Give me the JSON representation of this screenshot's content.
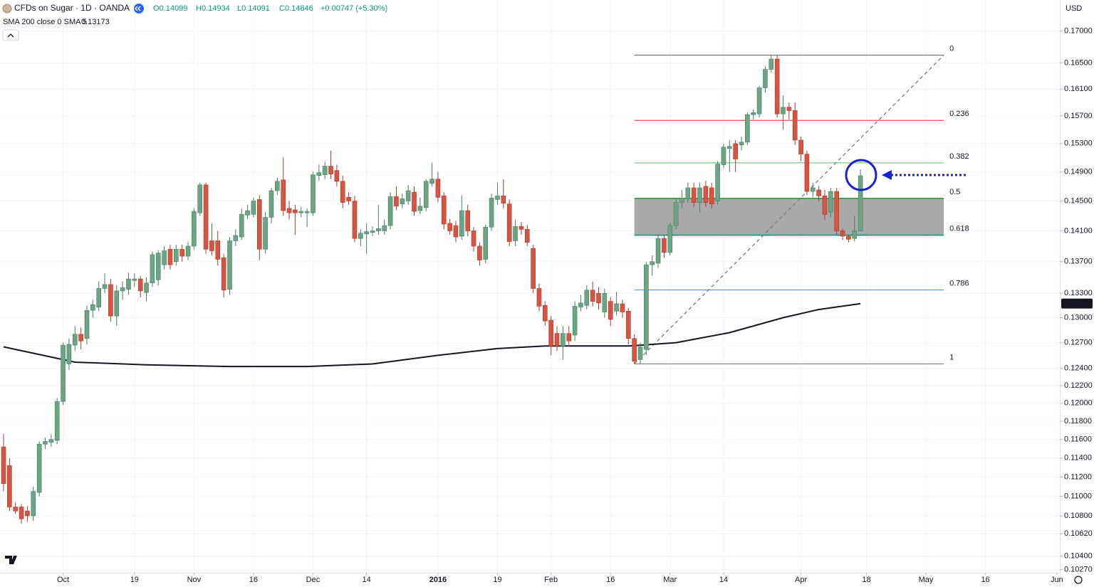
{
  "chart_data": {
    "type": "candlestick",
    "title": "CFDs on Sugar · 1D · OANDA",
    "ohlc_text": [
      "O0.14099",
      "H0.14934",
      "L0.14091",
      "C0.14846",
      "+0.00747 (+5.30%)"
    ],
    "currency": "USD",
    "log_scale": true,
    "grid": true,
    "up_color": "#6ba583",
    "down_color": "#d75442",
    "xlim": [
      -0.6,
      177.5
    ],
    "ylim": [
      0.1024,
      0.175
    ],
    "xticks": [
      {
        "value": 10,
        "label": "Oct"
      },
      {
        "value": 22,
        "label": "19"
      },
      {
        "value": 32,
        "label": "Nov"
      },
      {
        "value": 42,
        "label": "16"
      },
      {
        "value": 52,
        "label": "Dec"
      },
      {
        "value": 61,
        "label": "14"
      },
      {
        "value": 73,
        "label": "2016"
      },
      {
        "value": 83,
        "label": "19"
      },
      {
        "value": 92,
        "label": "Feb"
      },
      {
        "value": 102,
        "label": "16"
      },
      {
        "value": 112,
        "label": "Mar"
      },
      {
        "value": 121,
        "label": "14"
      },
      {
        "value": 134,
        "label": "Apr"
      },
      {
        "value": 145,
        "label": "18"
      },
      {
        "value": 155,
        "label": "May"
      },
      {
        "value": 165,
        "label": "16"
      },
      {
        "value": 177,
        "label": "Jun"
      }
    ],
    "yticks": [
      {
        "value": 0.17,
        "label": "0.17000"
      },
      {
        "value": 0.165,
        "label": "0.16500"
      },
      {
        "value": 0.161,
        "label": "0.16100"
      },
      {
        "value": 0.157,
        "label": "0.15700"
      },
      {
        "value": 0.153,
        "label": "0.15300"
      },
      {
        "value": 0.149,
        "label": "0.14900"
      },
      {
        "value": 0.145,
        "label": "0.14500"
      },
      {
        "value": 0.141,
        "label": "0.14100"
      },
      {
        "value": 0.137,
        "label": "0.13700"
      },
      {
        "value": 0.133,
        "label": "0.13300"
      },
      {
        "value": 0.13,
        "label": "0.13000"
      },
      {
        "value": 0.127,
        "label": "0.12700"
      },
      {
        "value": 0.124,
        "label": "0.12400"
      },
      {
        "value": 0.122,
        "label": "0.12200"
      },
      {
        "value": 0.12,
        "label": "0.12000"
      },
      {
        "value": 0.118,
        "label": "0.11800"
      },
      {
        "value": 0.116,
        "label": "0.11600"
      },
      {
        "value": 0.114,
        "label": "0.11400"
      },
      {
        "value": 0.112,
        "label": "0.11200"
      },
      {
        "value": 0.11,
        "label": "0.11000"
      },
      {
        "value": 0.108,
        "label": "0.10800"
      },
      {
        "value": 0.1062,
        "label": "0.10620"
      },
      {
        "value": 0.104,
        "label": "0.10400"
      },
      {
        "value": 0.1027,
        "label": "0.10270"
      }
    ],
    "x": [
      0,
      1,
      2,
      3,
      4,
      5,
      6,
      7,
      8,
      9,
      10,
      11,
      12,
      13,
      14,
      15,
      16,
      17,
      18,
      19,
      20,
      21,
      22,
      23,
      24,
      25,
      26,
      27,
      28,
      29,
      30,
      31,
      32,
      33,
      34,
      35,
      36,
      37,
      38,
      39,
      40,
      41,
      42,
      43,
      44,
      45,
      46,
      47,
      48,
      49,
      50,
      51,
      52,
      53,
      54,
      55,
      56,
      57,
      58,
      59,
      60,
      61,
      62,
      63,
      64,
      65,
      66,
      67,
      68,
      69,
      70,
      71,
      72,
      73,
      74,
      75,
      76,
      77,
      78,
      79,
      80,
      81,
      82,
      83,
      84,
      85,
      86,
      87,
      88,
      89,
      90,
      91,
      92,
      93,
      94,
      95,
      96,
      97,
      98,
      99,
      100,
      101,
      102,
      103,
      104,
      105,
      106,
      107,
      108,
      109,
      110,
      111,
      112,
      113,
      114,
      115,
      116,
      117,
      118,
      119,
      120,
      121,
      122,
      123,
      124,
      125,
      126,
      127,
      128,
      129,
      130,
      131,
      132,
      133,
      134,
      135,
      136,
      137,
      138,
      139,
      140,
      141,
      142,
      143,
      144
    ],
    "open": [
      0.1152,
      0.1132,
      0.1089,
      0.1089,
      0.1085,
      0.108,
      0.1104,
      0.1155,
      0.1157,
      0.1159,
      0.1202,
      0.1245,
      0.1267,
      0.128,
      0.1275,
      0.1309,
      0.1313,
      0.1336,
      0.1341,
      0.1302,
      0.1333,
      0.1335,
      0.1346,
      0.1348,
      0.1331,
      0.1343,
      0.1347,
      0.1366,
      0.1386,
      0.137,
      0.1386,
      0.1377,
      0.139,
      0.1434,
      0.1472,
      0.1397,
      0.1397,
      0.1375,
      0.1335,
      0.1397,
      0.1402,
      0.1431,
      0.1432,
      0.1452,
      0.1386,
      0.1428,
      0.1464,
      0.1479,
      0.144,
      0.1438,
      0.1434,
      0.1434,
      0.1434,
      0.1485,
      0.1486,
      0.1498,
      0.1492,
      0.1477,
      0.1455,
      0.145,
      0.14,
      0.1406,
      0.1408,
      0.141,
      0.141,
      0.1417,
      0.1456,
      0.1446,
      0.145,
      0.1462,
      0.1437,
      0.1441,
      0.1474,
      0.148,
      0.1457,
      0.142,
      0.1417,
      0.1403,
      0.1437,
      0.141,
      0.139,
      0.1373,
      0.1415,
      0.1452,
      0.1457,
      0.1446,
      0.1397,
      0.1416,
      0.1412,
      0.1387,
      0.1336,
      0.1315,
      0.1297,
      0.1281,
      0.1266,
      0.1281,
      0.1279,
      0.1313,
      0.1315,
      0.1334,
      0.133,
      0.1307,
      0.132,
      0.1308,
      0.1317,
      0.1308,
      0.1275,
      0.125,
      0.1262,
      0.1366,
      0.1368,
      0.14,
      0.1382,
      0.1417,
      0.1448,
      0.1453,
      0.1468,
      0.1448,
      0.147,
      0.1468,
      0.145,
      0.15,
      0.1523,
      0.153,
      0.1528,
      0.1532,
      0.1572,
      0.1573,
      0.1612,
      0.164,
      0.1656,
      0.1573,
      0.1583,
      0.1578,
      0.1535,
      0.1515,
      0.1463,
      0.1465,
      0.1457,
      0.1435,
      0.1463,
      0.141,
      0.1403,
      0.14,
      0.14099
    ],
    "high": [
      0.1166,
      0.114,
      0.1094,
      0.1092,
      0.109,
      0.111,
      0.1158,
      0.1162,
      0.1166,
      0.1206,
      0.127,
      0.1275,
      0.129,
      0.1288,
      0.1315,
      0.1322,
      0.1345,
      0.1355,
      0.1348,
      0.134,
      0.1345,
      0.1356,
      0.1355,
      0.1352,
      0.135,
      0.1383,
      0.1385,
      0.139,
      0.1392,
      0.1392,
      0.1392,
      0.1396,
      0.144,
      0.1475,
      0.1475,
      0.142,
      0.141,
      0.138,
      0.1402,
      0.1412,
      0.144,
      0.1445,
      0.1455,
      0.1458,
      0.1435,
      0.1468,
      0.1482,
      0.151,
      0.145,
      0.1445,
      0.1442,
      0.144,
      0.149,
      0.15,
      0.1505,
      0.152,
      0.15,
      0.1485,
      0.1462,
      0.1457,
      0.1412,
      0.142,
      0.1416,
      0.1445,
      0.1425,
      0.1462,
      0.147,
      0.146,
      0.1472,
      0.147,
      0.1455,
      0.148,
      0.1503,
      0.149,
      0.1462,
      0.1426,
      0.1423,
      0.1458,
      0.1445,
      0.1415,
      0.1395,
      0.1418,
      0.146,
      0.1475,
      0.148,
      0.1452,
      0.1425,
      0.1422,
      0.1418,
      0.1392,
      0.1342,
      0.132,
      0.1302,
      0.129,
      0.129,
      0.129,
      0.132,
      0.1328,
      0.134,
      0.1345,
      0.1338,
      0.1336,
      0.1325,
      0.1332,
      0.1322,
      0.1312,
      0.128,
      0.127,
      0.137,
      0.1378,
      0.1405,
      0.1405,
      0.142,
      0.1453,
      0.1465,
      0.1475,
      0.1475,
      0.1475,
      0.1478,
      0.1475,
      0.1505,
      0.153,
      0.1535,
      0.1535,
      0.154,
      0.1575,
      0.158,
      0.1615,
      0.1645,
      0.1662,
      0.1662,
      0.16,
      0.159,
      0.159,
      0.154,
      0.152,
      0.1475,
      0.147,
      0.1465,
      0.1468,
      0.1468,
      0.1413,
      0.1405,
      0.143,
      0.14934
    ],
    "low": [
      0.1105,
      0.1085,
      0.1082,
      0.1072,
      0.1074,
      0.1075,
      0.11,
      0.115,
      0.1152,
      0.1155,
      0.1198,
      0.1238,
      0.126,
      0.1262,
      0.1268,
      0.13,
      0.1308,
      0.133,
      0.1295,
      0.129,
      0.1322,
      0.1328,
      0.1338,
      0.1325,
      0.132,
      0.1338,
      0.134,
      0.136,
      0.136,
      0.1365,
      0.137,
      0.1372,
      0.1385,
      0.143,
      0.138,
      0.1378,
      0.1365,
      0.1325,
      0.1328,
      0.139,
      0.1398,
      0.1425,
      0.1428,
      0.1372,
      0.138,
      0.142,
      0.1458,
      0.143,
      0.1425,
      0.1405,
      0.1428,
      0.1415,
      0.143,
      0.1478,
      0.148,
      0.148,
      0.147,
      0.144,
      0.1445,
      0.1395,
      0.139,
      0.138,
      0.1403,
      0.1405,
      0.1405,
      0.1412,
      0.1438,
      0.144,
      0.1445,
      0.143,
      0.1432,
      0.1436,
      0.147,
      0.1448,
      0.1412,
      0.1405,
      0.1395,
      0.1398,
      0.1403,
      0.1383,
      0.1365,
      0.1368,
      0.141,
      0.1445,
      0.144,
      0.139,
      0.139,
      0.1405,
      0.139,
      0.133,
      0.1308,
      0.129,
      0.1255,
      0.126,
      0.125,
      0.1265,
      0.1272,
      0.1308,
      0.131,
      0.1314,
      0.131,
      0.13,
      0.129,
      0.1303,
      0.13,
      0.1268,
      0.1245,
      0.1245,
      0.1255,
      0.1352,
      0.1362,
      0.1375,
      0.1378,
      0.1412,
      0.144,
      0.1448,
      0.1442,
      0.1435,
      0.1442,
      0.144,
      0.1445,
      0.1495,
      0.149,
      0.149,
      0.152,
      0.1528,
      0.1565,
      0.1568,
      0.1605,
      0.1635,
      0.1568,
      0.155,
      0.1565,
      0.1528,
      0.1505,
      0.1458,
      0.1455,
      0.145,
      0.1425,
      0.1428,
      0.1405,
      0.1398,
      0.1395,
      0.1396,
      0.14091
    ],
    "close": [
      0.1113,
      0.1089,
      0.1085,
      0.1077,
      0.108,
      0.1105,
      0.1155,
      0.1158,
      0.116,
      0.1202,
      0.1267,
      0.1268,
      0.128,
      0.1272,
      0.1309,
      0.1316,
      0.1336,
      0.1341,
      0.1302,
      0.1333,
      0.1337,
      0.1348,
      0.1348,
      0.1333,
      0.1343,
      0.1379,
      0.1381,
      0.1384,
      0.1366,
      0.1386,
      0.1377,
      0.139,
      0.1436,
      0.1472,
      0.1386,
      0.1384,
      0.1373,
      0.1334,
      0.1397,
      0.1404,
      0.1432,
      0.1437,
      0.145,
      0.1386,
      0.1428,
      0.1464,
      0.1477,
      0.1437,
      0.1434,
      0.1434,
      0.1436,
      0.1436,
      0.1486,
      0.1489,
      0.1498,
      0.1487,
      0.1477,
      0.1448,
      0.145,
      0.14,
      0.1407,
      0.1409,
      0.141,
      0.1413,
      0.1417,
      0.1456,
      0.1443,
      0.1453,
      0.1464,
      0.1436,
      0.1443,
      0.1477,
      0.148,
      0.1455,
      0.1419,
      0.141,
      0.1402,
      0.1437,
      0.141,
      0.139,
      0.1372,
      0.1415,
      0.1454,
      0.1457,
      0.1447,
      0.1396,
      0.1416,
      0.1412,
      0.1395,
      0.1336,
      0.1314,
      0.1296,
      0.1266,
      0.1266,
      0.1281,
      0.1272,
      0.1314,
      0.1318,
      0.1334,
      0.132,
      0.1318,
      0.133,
      0.1298,
      0.1317,
      0.1307,
      0.1275,
      0.1248,
      0.1265,
      0.1366,
      0.137,
      0.14,
      0.1382,
      0.1417,
      0.1448,
      0.1454,
      0.1468,
      0.1448,
      0.1468,
      0.1448,
      0.1446,
      0.1501,
      0.1525,
      0.1526,
      0.1508,
      0.1532,
      0.1572,
      0.1575,
      0.1612,
      0.164,
      0.1656,
      0.1573,
      0.1583,
      0.1578,
      0.1535,
      0.1515,
      0.1463,
      0.1468,
      0.1457,
      0.1432,
      0.1463,
      0.141,
      0.1403,
      0.1399,
      0.141,
      0.14846
    ],
    "sma": {
      "name": "SMA 200 close 0 SMA 5",
      "color": "#131722",
      "x": [
        0,
        12,
        24,
        38,
        51,
        62,
        73,
        83,
        91,
        105,
        113,
        122,
        131,
        137,
        144
      ],
      "values": [
        0.1265,
        0.1247,
        0.1244,
        0.1242,
        0.1242,
        0.1245,
        0.1255,
        0.1263,
        0.1266,
        0.1266,
        0.127,
        0.1282,
        0.13,
        0.131,
        0.13173
      ]
    },
    "fib": {
      "high": 0.1662,
      "low": 0.1245,
      "x": [
        106,
        158
      ],
      "trend_line": true,
      "levels": [
        {
          "level": 0,
          "color": "#787b86"
        },
        {
          "level": 0.236,
          "color": "#f23645"
        },
        {
          "level": 0.382,
          "color": "#81c784"
        },
        {
          "level": 0.5,
          "color": "#3d9a47",
          "fill": "#a9a9a9"
        },
        {
          "level": 0.618,
          "color": "#089981"
        },
        {
          "level": 0.786,
          "color": "#42a5f5"
        },
        {
          "level": 1,
          "color": "#787b86"
        }
      ]
    }
  }
}
